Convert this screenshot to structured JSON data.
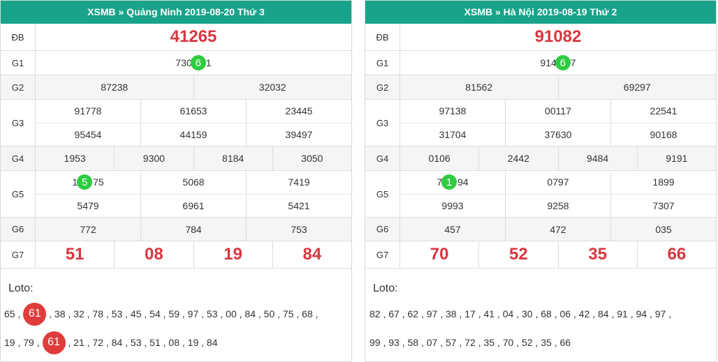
{
  "left": {
    "title": "XSMB » Quảng Ninh  2019-08-20  Thứ 3",
    "labels": {
      "db": "ĐB",
      "g1": "G1",
      "g2": "G2",
      "g3": "G3",
      "g4": "G4",
      "g5": "G5",
      "g6": "G6",
      "g7": "G7"
    },
    "db": "41265",
    "g1": {
      "before": "730",
      "circle": "6",
      "after": "1"
    },
    "g2": [
      "87238",
      "32032"
    ],
    "g3": [
      [
        "91778",
        "61653",
        "23445"
      ],
      [
        "95454",
        "44159",
        "39497"
      ]
    ],
    "g4": [
      "1953",
      "9300",
      "8184",
      "3050"
    ],
    "g5": {
      "first": {
        "before": "1",
        "circle": "5",
        "after": "75"
      },
      "rest": [
        "5068",
        "7419"
      ],
      "row2": [
        "5479",
        "6961",
        "5421"
      ]
    },
    "g6": [
      "772",
      "784",
      "753"
    ],
    "g7": [
      "51",
      "08",
      "19",
      "84"
    ],
    "loto_title": "Loto:",
    "loto_line1": [
      "65",
      "61",
      "38",
      "32",
      "78",
      "53",
      "45",
      "54",
      "59",
      "97",
      "53",
      "00",
      "84",
      "50",
      "75",
      "68"
    ],
    "loto_line2": [
      "19",
      "79",
      "61",
      "21",
      "72",
      "84",
      "53",
      "51",
      "08",
      "19",
      "84"
    ],
    "loto_highlight": "61"
  },
  "right": {
    "title": "XSMB » Hà Nội  2019-08-19  Thứ 2",
    "labels": {
      "db": "ĐB",
      "g1": "G1",
      "g2": "G2",
      "g3": "G3",
      "g4": "G4",
      "g5": "G5",
      "g6": "G6",
      "g7": "G7"
    },
    "db": "91082",
    "g1": {
      "before": "914",
      "circle": "6",
      "after": "7"
    },
    "g2": [
      "81562",
      "69297"
    ],
    "g3": [
      [
        "97138",
        "00117",
        "22541"
      ],
      [
        "31704",
        "37630",
        "90168"
      ]
    ],
    "g4": [
      "0106",
      "2442",
      "9484",
      "9191"
    ],
    "g5": {
      "first": {
        "before": "7",
        "circle": "1",
        "after": "94"
      },
      "rest": [
        "0797",
        "1899"
      ],
      "row2": [
        "9993",
        "9258",
        "7307"
      ]
    },
    "g6": [
      "457",
      "472",
      "035"
    ],
    "g7": [
      "70",
      "52",
      "35",
      "66"
    ],
    "loto_title": "Loto:",
    "loto_line1": [
      "82",
      "67",
      "62",
      "97",
      "38",
      "17",
      "41",
      "04",
      "30",
      "68",
      "06",
      "42",
      "84",
      "91",
      "94",
      "97"
    ],
    "loto_line2": [
      "99",
      "93",
      "58",
      "07",
      "57",
      "72",
      "35",
      "70",
      "52",
      "35",
      "66"
    ]
  },
  "colors": {
    "header": "#18a38a",
    "number_red": "#d9363e",
    "circle_green": "#2ecc40",
    "circle_red": "#e03b3b"
  }
}
